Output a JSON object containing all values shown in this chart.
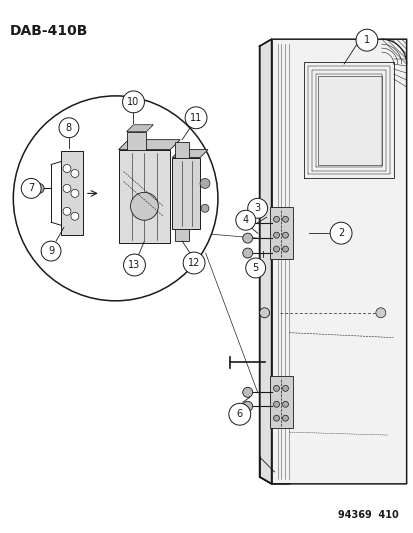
{
  "title": "DAB-410B",
  "footer": "94369  410",
  "bg_color": "#ffffff",
  "line_color": "#1a1a1a",
  "title_fontsize": 10,
  "footer_fontsize": 7,
  "callout_r": 0.021
}
